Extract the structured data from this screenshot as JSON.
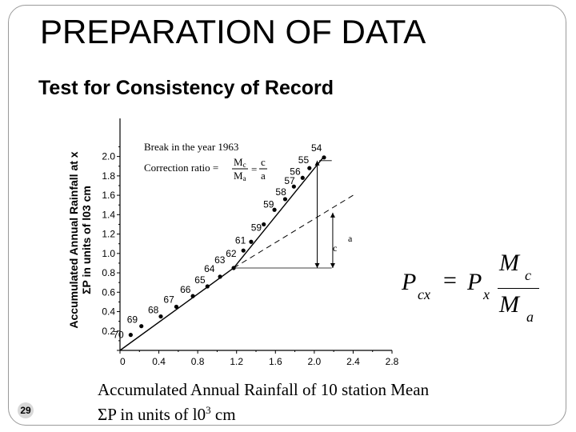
{
  "slide": {
    "title": "PREPARATION OF DATA",
    "subtitle": "Test for Consistency of Record",
    "slide_number": "29",
    "y_axis_label_line1": "Accumulated Annual Rainfall at x",
    "y_axis_label_line2": "ΣP in units of l03 cm",
    "x_axis_label_line1": "Accumulated Annual Rainfall of 10 station Mean",
    "x_axis_label_line2_prefix": "ΣP in units of l0",
    "x_axis_label_line2_sup": "3",
    "x_axis_label_line2_suffix": " cm"
  },
  "formula": {
    "lhs_main": "P",
    "lhs_sub": "cx",
    "equals": "=",
    "rhs_main": "P",
    "rhs_sub": "x",
    "numerator_main": "M",
    "numerator_sub": "c",
    "denominator_main": "M",
    "denominator_sub": "a"
  },
  "chart_data": {
    "type": "scatter",
    "xlim": [
      0,
      2.8
    ],
    "ylim": [
      0,
      2.1
    ],
    "x_ticks": [
      "0",
      "0.4",
      "0.8",
      "1.2",
      "1.6",
      "2.0",
      "2.4",
      "2.8"
    ],
    "y_ticks": [
      "0",
      "0.2",
      "0.4",
      "0.6",
      "0.8",
      "1.0",
      "1.2",
      "1.4",
      "1.6",
      "1.8",
      "2.0"
    ],
    "points": [
      {
        "label": "70",
        "x": 0.11,
        "y": 0.16
      },
      {
        "label": "69",
        "x": 0.22,
        "y": 0.25
      },
      {
        "label": "68",
        "x": 0.42,
        "y": 0.35
      },
      {
        "label": "67",
        "x": 0.58,
        "y": 0.45
      },
      {
        "label": "66",
        "x": 0.75,
        "y": 0.56
      },
      {
        "label": "65",
        "x": 0.9,
        "y": 0.66
      },
      {
        "label": "64",
        "x": 1.03,
        "y": 0.76
      },
      {
        "label": "63",
        "x": 1.17,
        "y": 0.85
      },
      {
        "label": "62",
        "x": 1.27,
        "y": 1.03
      },
      {
        "label": "61",
        "x": 1.35,
        "y": 1.12
      },
      {
        "label": "59",
        "x": 1.48,
        "y": 1.3
      },
      {
        "label": "59",
        "x": 1.59,
        "y": 1.45
      },
      {
        "label": "58",
        "x": 1.7,
        "y": 1.56
      },
      {
        "label": "57",
        "x": 1.79,
        "y": 1.69
      },
      {
        "label": "56",
        "x": 1.88,
        "y": 1.78
      },
      {
        "label": "55",
        "x": 1.95,
        "y": 1.88
      },
      {
        "label": "54",
        "x": 2.1,
        "y": 1.99
      }
    ],
    "trend_line_before_break": {
      "from": [
        0,
        0
      ],
      "to": [
        1.17,
        0.85
      ]
    },
    "trend_line_after_break": {
      "from": [
        1.17,
        0.85
      ],
      "to": [
        2.1,
        2.0
      ]
    },
    "extended_line": {
      "from": [
        1.17,
        0.85
      ],
      "to": [
        2.4,
        1.6
      ]
    },
    "annotations": {
      "break_text": "Break in the year 1963",
      "ratio_text": "Correction ratio =",
      "ratio_mc_num": "M",
      "ratio_mc_sub": "c",
      "ratio_ma_den": "M",
      "ratio_ma_sub": "a",
      "ratio_eq": "=",
      "ratio_c": "c",
      "ratio_a": "a",
      "dim_a": "a",
      "dim_c": "c"
    }
  }
}
